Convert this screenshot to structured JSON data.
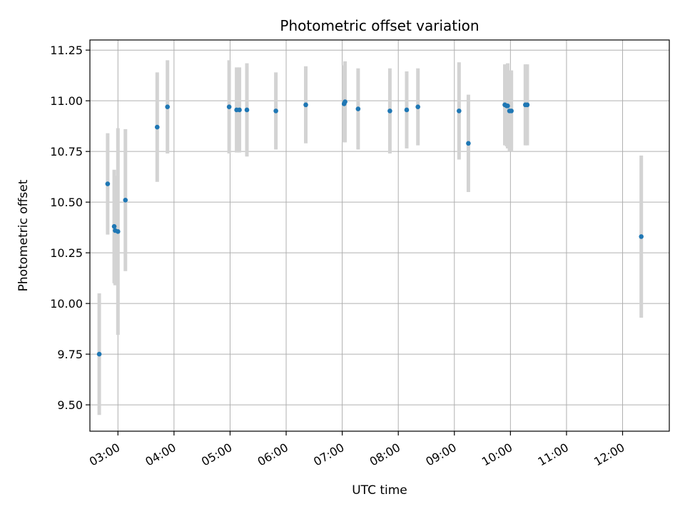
{
  "chart_data": {
    "type": "scatter",
    "title": "Photometric offset variation",
    "xlabel": "UTC time",
    "ylabel": "Photometric offset",
    "x_axis_type": "time",
    "xlim": [
      "02:30",
      "12:50"
    ],
    "ylim": [
      9.37,
      11.3
    ],
    "x_ticks": [
      "03:00",
      "04:00",
      "05:00",
      "06:00",
      "07:00",
      "08:00",
      "09:00",
      "10:00",
      "11:00",
      "12:00"
    ],
    "y_ticks": [
      9.5,
      9.75,
      10.0,
      10.25,
      10.5,
      10.75,
      11.0,
      11.25
    ],
    "y_tick_labels": [
      "9.50",
      "9.75",
      "10.00",
      "10.25",
      "10.50",
      "10.75",
      "11.00",
      "11.25"
    ],
    "grid": true,
    "marker_color": "#1f77b4",
    "errorbar_color": "#d3d3d3",
    "points": [
      {
        "x": "02:40",
        "y": 9.75,
        "yerr": 0.3
      },
      {
        "x": "02:49",
        "y": 10.59,
        "yerr": 0.25
      },
      {
        "x": "02:56",
        "y": 10.38,
        "yerr": 0.28
      },
      {
        "x": "02:57",
        "y": 10.36,
        "yerr": 0.27
      },
      {
        "x": "03:00",
        "y": 10.355,
        "yerr": 0.51
      },
      {
        "x": "03:08",
        "y": 10.51,
        "yerr": 0.35
      },
      {
        "x": "03:42",
        "y": 10.87,
        "yerr": 0.27
      },
      {
        "x": "03:53",
        "y": 10.97,
        "yerr": 0.23
      },
      {
        "x": "04:59",
        "y": 10.97,
        "yerr": 0.23
      },
      {
        "x": "05:07",
        "y": 10.955,
        "yerr": 0.21
      },
      {
        "x": "05:10",
        "y": 10.955,
        "yerr": 0.21
      },
      {
        "x": "05:18",
        "y": 10.955,
        "yerr": 0.23
      },
      {
        "x": "05:49",
        "y": 10.95,
        "yerr": 0.19
      },
      {
        "x": "06:21",
        "y": 10.98,
        "yerr": 0.19
      },
      {
        "x": "07:02",
        "y": 10.985,
        "yerr": 0.19
      },
      {
        "x": "07:03",
        "y": 10.995,
        "yerr": 0.2
      },
      {
        "x": "07:17",
        "y": 10.96,
        "yerr": 0.2
      },
      {
        "x": "07:51",
        "y": 10.95,
        "yerr": 0.21
      },
      {
        "x": "08:09",
        "y": 10.955,
        "yerr": 0.19
      },
      {
        "x": "08:21",
        "y": 10.97,
        "yerr": 0.19
      },
      {
        "x": "09:05",
        "y": 10.95,
        "yerr": 0.24
      },
      {
        "x": "09:15",
        "y": 10.79,
        "yerr": 0.24
      },
      {
        "x": "09:54",
        "y": 10.98,
        "yerr": 0.2
      },
      {
        "x": "09:56",
        "y": 10.975,
        "yerr": 0.2
      },
      {
        "x": "09:57",
        "y": 10.975,
        "yerr": 0.21
      },
      {
        "x": "09:59",
        "y": 10.95,
        "yerr": 0.2
      },
      {
        "x": "10:01",
        "y": 10.95,
        "yerr": 0.2
      },
      {
        "x": "10:16",
        "y": 10.98,
        "yerr": 0.2
      },
      {
        "x": "10:18",
        "y": 10.98,
        "yerr": 0.2
      },
      {
        "x": "12:20",
        "y": 10.33,
        "yerr": 0.4
      }
    ]
  }
}
